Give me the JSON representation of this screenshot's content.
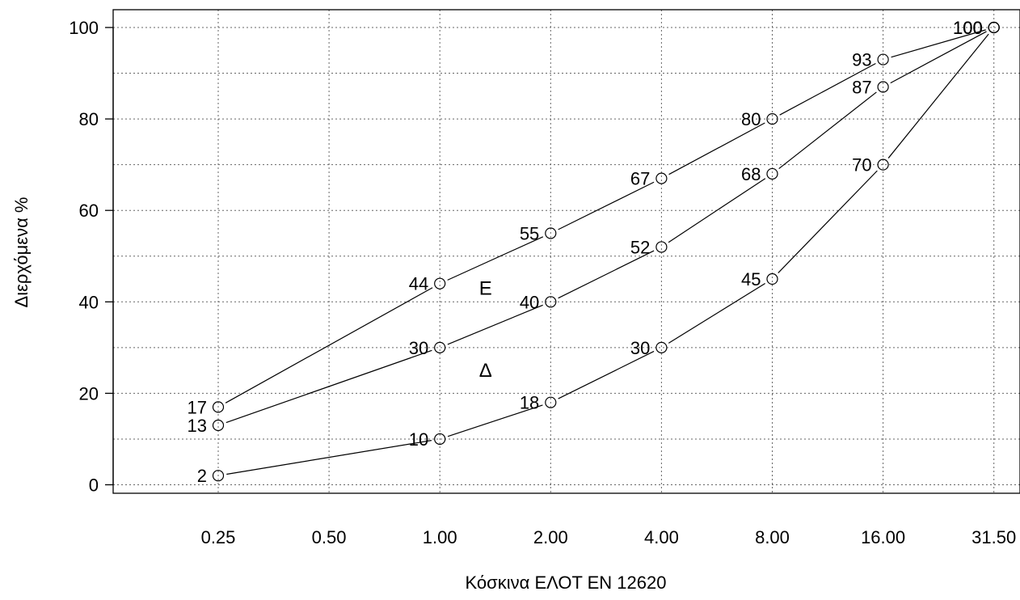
{
  "chart_data": {
    "type": "line",
    "title": "",
    "xlabel": "Κόσκινα ΕΛΟΤ EN 12620",
    "ylabel": "Διερχόμενα %",
    "categories": [
      "0.25",
      "0.50",
      "1.00",
      "2.00",
      "4.00",
      "8.00",
      "16.00",
      "31.50"
    ],
    "y_ticks": [
      0,
      20,
      40,
      60,
      80,
      100
    ],
    "ylim": [
      0,
      100
    ],
    "grid": true,
    "series": [
      {
        "points": [
          {
            "x": "0.25",
            "y": 17
          },
          {
            "x": "1.00",
            "y": 44
          },
          {
            "x": "2.00",
            "y": 55
          },
          {
            "x": "4.00",
            "y": 67
          },
          {
            "x": "8.00",
            "y": 80
          },
          {
            "x": "16.00",
            "y": 93
          },
          {
            "x": "31.50",
            "y": 100
          }
        ]
      },
      {
        "points": [
          {
            "x": "0.25",
            "y": 13
          },
          {
            "x": "1.00",
            "y": 30
          },
          {
            "x": "2.00",
            "y": 40
          },
          {
            "x": "4.00",
            "y": 52
          },
          {
            "x": "8.00",
            "y": 68
          },
          {
            "x": "16.00",
            "y": 87
          },
          {
            "x": "31.50",
            "y": 100
          }
        ]
      },
      {
        "points": [
          {
            "x": "0.25",
            "y": 2
          },
          {
            "x": "1.00",
            "y": 10
          },
          {
            "x": "2.00",
            "y": 18
          },
          {
            "x": "4.00",
            "y": 30
          },
          {
            "x": "8.00",
            "y": 45
          },
          {
            "x": "16.00",
            "y": 70
          },
          {
            "x": "31.50",
            "y": 100
          }
        ]
      }
    ],
    "annotations": [
      {
        "text": "Ε",
        "x_between": [
          "1.00",
          "2.00"
        ],
        "y": 43
      },
      {
        "text": "Δ",
        "x_between": [
          "1.00",
          "2.00"
        ],
        "y": 25
      }
    ]
  }
}
